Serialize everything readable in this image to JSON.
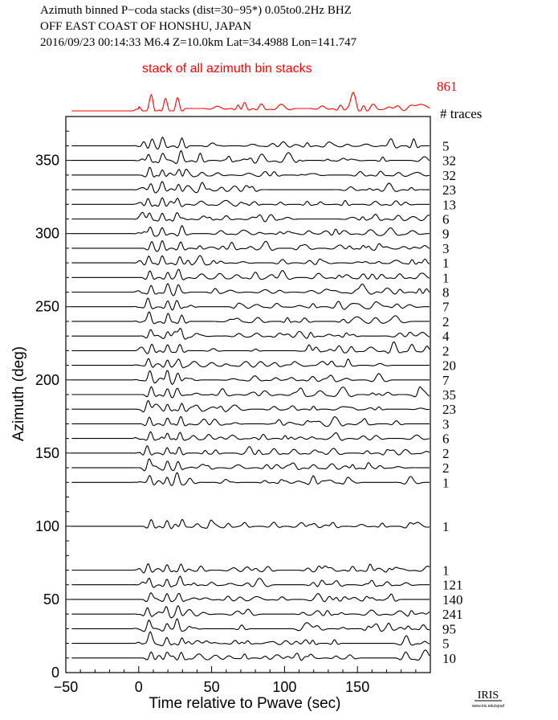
{
  "header": {
    "line1": "Azimuth binned P−coda stacks (dist=30−95*)  0.05to0.2Hz  BHZ",
    "line2": "OFF EAST COAST OF HONSHU, JAPAN",
    "line3": "2016/09/23  00:14:33  M6.4  Z=10.0km Lat=34.4988 Lon=141.747"
  },
  "stack": {
    "label": "stack of all azimuth bin stacks",
    "count": "861",
    "color": "#ff0000"
  },
  "traces_header": "# traces",
  "logo": {
    "text": "IRIS",
    "subtext": "www.iris.edu/spud"
  },
  "chart_data": {
    "type": "line",
    "xlabel": "Time relative to Pwave (sec)",
    "ylabel": "Azimuth (deg)",
    "xlim": [
      -50,
      200
    ],
    "ylim": [
      0,
      380
    ],
    "xticks": [
      -50,
      0,
      50,
      100,
      150
    ],
    "yticks": [
      0,
      50,
      100,
      150,
      200,
      250,
      300,
      350
    ],
    "grid": false,
    "trace_color": "#000000",
    "bins": [
      {
        "azimuth": 10,
        "traces": "10"
      },
      {
        "azimuth": 20,
        "traces": "5"
      },
      {
        "azimuth": 30,
        "traces": "95"
      },
      {
        "azimuth": 40,
        "traces": "241"
      },
      {
        "azimuth": 50,
        "traces": "140"
      },
      {
        "azimuth": 60,
        "traces": "121"
      },
      {
        "azimuth": 70,
        "traces": "1"
      },
      {
        "azimuth": 100,
        "traces": "1"
      },
      {
        "azimuth": 130,
        "traces": "1"
      },
      {
        "azimuth": 140,
        "traces": "2"
      },
      {
        "azimuth": 150,
        "traces": "2"
      },
      {
        "azimuth": 160,
        "traces": "6"
      },
      {
        "azimuth": 170,
        "traces": "3"
      },
      {
        "azimuth": 180,
        "traces": "23"
      },
      {
        "azimuth": 190,
        "traces": "35"
      },
      {
        "azimuth": 200,
        "traces": "7"
      },
      {
        "azimuth": 210,
        "traces": "20"
      },
      {
        "azimuth": 220,
        "traces": "2"
      },
      {
        "azimuth": 230,
        "traces": "4"
      },
      {
        "azimuth": 240,
        "traces": "2"
      },
      {
        "azimuth": 250,
        "traces": "7"
      },
      {
        "azimuth": 260,
        "traces": "8"
      },
      {
        "azimuth": 270,
        "traces": "1"
      },
      {
        "azimuth": 280,
        "traces": "1"
      },
      {
        "azimuth": 290,
        "traces": "3"
      },
      {
        "azimuth": 300,
        "traces": "9"
      },
      {
        "azimuth": 310,
        "traces": "6"
      },
      {
        "azimuth": 320,
        "traces": "13"
      },
      {
        "azimuth": 330,
        "traces": "23"
      },
      {
        "azimuth": 340,
        "traces": "32"
      },
      {
        "azimuth": 350,
        "traces": "32"
      },
      {
        "azimuth": 360,
        "traces": "5"
      }
    ]
  }
}
